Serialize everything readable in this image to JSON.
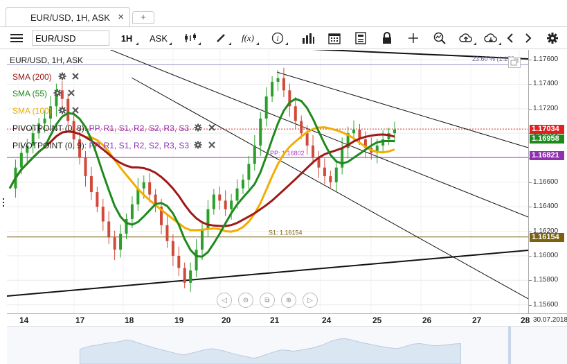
{
  "tab": {
    "title": "EUR/USD, 1H, ASK",
    "close_glyph": "×",
    "add_glyph": "+"
  },
  "toolbar": {
    "symbol": "EUR/USD",
    "timeframe": "1H",
    "side": "ASK",
    "fx_label": "f(x)",
    "info_label": "i"
  },
  "legend": {
    "instrument": "EUR/USD, 1H, ASK",
    "sma200": "SMA (200)",
    "sma55": "SMA (55)",
    "sma100": "SMA (100)",
    "pivot1_name": "PIVOTPOINT (0, 8)",
    "pivot1_fields": ": PP, R1, S1, R2, S2, R3, S3",
    "pivot2_name": "PIVOTPOINT (0, 9)",
    "pivot2_fields": ": PP, R1, S1, R2, S2, R3, S3",
    "fib_label": "23.60 % (1.175"
  },
  "colors": {
    "sma200": "#a01818",
    "sma55": "#1e8a1e",
    "sma100": "#f2ad00",
    "pivot": "#b040c0",
    "bull": "#2aa02a",
    "bear": "#d04a3a",
    "last": "#e02020",
    "s1": "#7a6010",
    "pivot_tag": "#9030b0"
  },
  "chart_data": {
    "type": "candlestick",
    "instrument": "EUR/USD",
    "timeframe": "1H",
    "y_ticks": [
      "1.17600",
      "1.17400",
      "1.17200",
      "1.17000",
      "1.16800",
      "1.16600",
      "1.16400",
      "1.16200",
      "1.16000",
      "1.15800",
      "1.15600"
    ],
    "ylim": [
      1.1553,
      1.1768
    ],
    "x_labels": [
      "14",
      "17",
      "18",
      "19",
      "20",
      "21",
      "24",
      "25",
      "26",
      "27",
      "28",
      "30.07.2018"
    ],
    "last_price": "1.17034",
    "price_tags": [
      {
        "label": "1.17034",
        "value": 1.17034,
        "color": "#e02020"
      },
      {
        "label": "1.16958",
        "value": 1.16958,
        "color": "#1e8a1e"
      },
      {
        "label": "1.16821",
        "value": 1.16821,
        "color": "#9030b0"
      },
      {
        "label": "1.16154",
        "value": 1.16154,
        "color": "#7a6010"
      }
    ],
    "pivot_pp": {
      "label": "PP: 1.16802",
      "value": 1.16802
    },
    "pivot_s1": {
      "label": "S1: 1.16154",
      "value": 1.16154
    },
    "close_series": [
      1.1655,
      1.1672,
      1.1684,
      1.169,
      1.17,
      1.1708,
      1.1712,
      1.1722,
      1.1735,
      1.1728,
      1.171,
      1.1695,
      1.168,
      1.1665,
      1.1652,
      1.164,
      1.1628,
      1.1615,
      1.1605,
      1.1618,
      1.163,
      1.1642,
      1.1655,
      1.166,
      1.165,
      1.164,
      1.1625,
      1.1612,
      1.16,
      1.159,
      1.1578,
      1.1588,
      1.1605,
      1.1622,
      1.1638,
      1.165,
      1.1645,
      1.1638,
      1.1645,
      1.1655,
      1.1662,
      1.1675,
      1.169,
      1.1712,
      1.173,
      1.1742,
      1.1745,
      1.1735,
      1.1722,
      1.171,
      1.17,
      1.169,
      1.168,
      1.1672,
      1.1665,
      1.166,
      1.1672,
      1.1688,
      1.17,
      1.1703,
      1.1695,
      1.1688,
      1.1684,
      1.169,
      1.1695,
      1.17,
      1.1703
    ]
  }
}
